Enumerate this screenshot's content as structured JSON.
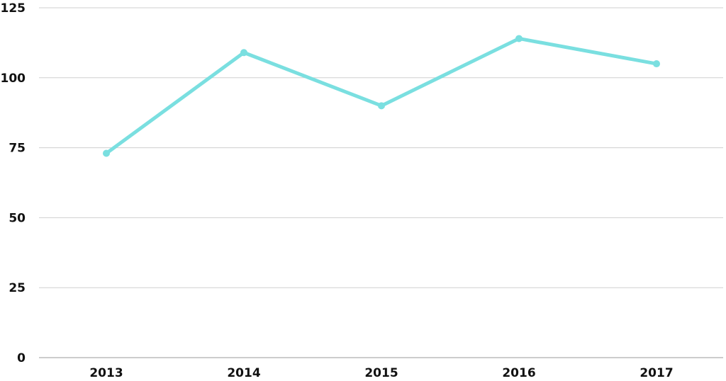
{
  "chart_data": {
    "type": "line",
    "categories": [
      "2013",
      "2014",
      "2015",
      "2016",
      "2017"
    ],
    "series": [
      {
        "values": [
          73,
          109,
          90,
          114,
          105
        ]
      }
    ],
    "title": "",
    "xlabel": "",
    "ylabel": "",
    "ylim": [
      0,
      125
    ],
    "yticks": [
      "0",
      "25",
      "50",
      "75",
      "100",
      "125"
    ],
    "grid": true,
    "legend": "none",
    "colors": {
      "series": "#7adfe0",
      "grid": "#cfcfcf",
      "axis": "#9a9a9a",
      "text": "#111111"
    }
  }
}
